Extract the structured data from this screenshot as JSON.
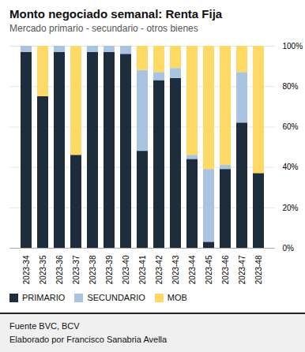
{
  "chart_data": {
    "type": "bar",
    "stacked": true,
    "title": "Monto negociado semanal: Renta Fija",
    "subtitle": "Mercado  primario  -  secundario  -  otros bienes",
    "categories": [
      "2023-34",
      "2023-35",
      "2023-36",
      "2023-37",
      "2023-38",
      "2023-39",
      "2023-40",
      "2023-41",
      "2023-42",
      "2023-43",
      "2023-44",
      "2023-45",
      "2023-46",
      "2023-47",
      "2023-48"
    ],
    "series": [
      {
        "name": "PRIMARIO",
        "color": "#1e2d3c",
        "values": [
          97,
          75,
          97,
          46,
          97,
          97,
          96,
          48,
          83,
          84,
          44,
          3,
          39,
          62,
          37
        ]
      },
      {
        "name": "SECUNDARIO",
        "color": "#a8c4e0",
        "values": [
          3,
          0,
          3,
          0,
          3,
          3,
          4,
          40,
          4,
          5,
          2,
          36,
          2,
          25,
          0
        ]
      },
      {
        "name": "MOB",
        "color": "#ffd966",
        "values": [
          0,
          25,
          0,
          54,
          0,
          0,
          0,
          12,
          13,
          11,
          54,
          61,
          59,
          13,
          63
        ]
      }
    ],
    "ylim": [
      0,
      100
    ],
    "yticks": [
      {
        "value": 0,
        "label": "0%"
      },
      {
        "value": 20,
        "label": "20%"
      },
      {
        "value": 40,
        "label": "40%"
      },
      {
        "value": 60,
        "label": "60%"
      },
      {
        "value": 80,
        "label": "80%"
      },
      {
        "value": 100,
        "label": "100%"
      }
    ],
    "grid": true,
    "legend": "bottom",
    "annotations": [
      "Fuente BVC, BCV",
      "Elaborado por Francisco Sanabria Avella"
    ]
  }
}
